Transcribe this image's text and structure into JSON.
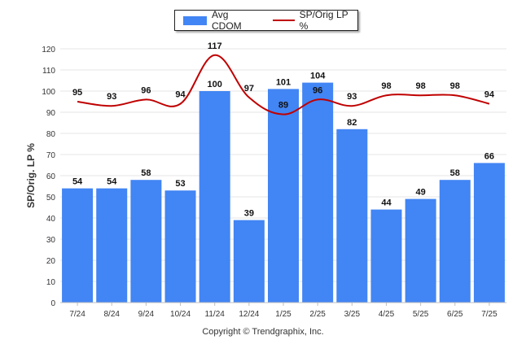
{
  "chart_data": {
    "type": "bar",
    "categories": [
      "7/24",
      "8/24",
      "9/24",
      "10/24",
      "11/24",
      "12/24",
      "1/25",
      "2/25",
      "3/25",
      "4/25",
      "5/25",
      "6/25",
      "7/25"
    ],
    "series": [
      {
        "name": "Avg CDOM",
        "type": "bar",
        "color": "#4285f4",
        "values": [
          54,
          54,
          58,
          53,
          100,
          39,
          101,
          104,
          82,
          44,
          49,
          58,
          66
        ]
      },
      {
        "name": "SP/Orig LP %",
        "type": "line",
        "color": "#c00000",
        "values": [
          95,
          93,
          96,
          94,
          117,
          97,
          89,
          96,
          93,
          98,
          98,
          98,
          94
        ]
      }
    ],
    "ylabel": "SP/Orig. LP %",
    "ylim": [
      0,
      120
    ],
    "yticks": [
      0,
      10,
      20,
      30,
      40,
      50,
      60,
      70,
      80,
      90,
      100,
      110,
      120
    ],
    "grid": true,
    "legend_position": "top-center"
  },
  "footer": {
    "copyright": "Copyright © Trendgraphix, Inc."
  }
}
